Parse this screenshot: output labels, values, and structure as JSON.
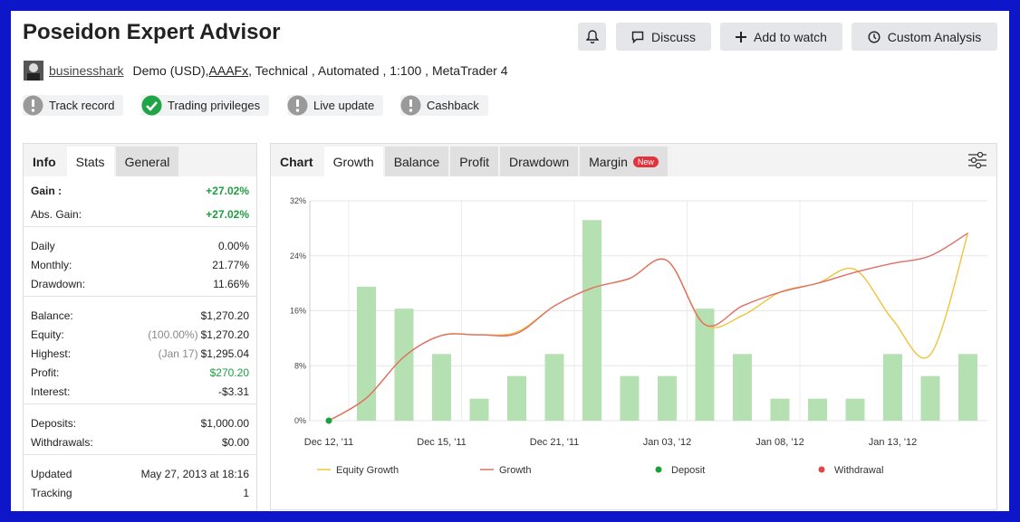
{
  "header": {
    "title": "Poseidon Expert Advisor",
    "buttons": [
      "Discuss",
      "Add to watch",
      "Custom Analysis"
    ],
    "user": "businesshark",
    "account": "Demo (USD),",
    "broker": "AAAFx",
    "details": ", Technical , Automated , 1:100 , MetaTrader 4",
    "badges": [
      "Track record",
      "Trading privileges",
      "Live update",
      "Cashback"
    ]
  },
  "left_tabs": [
    "Info",
    "Stats",
    "General"
  ],
  "stats": [
    [
      {
        "label": "Gain :",
        "value": "+27.02%",
        "color": "#1e9e3e"
      },
      {
        "label": "Abs. Gain:",
        "value": "+27.02%",
        "color": "#1e9e3e"
      }
    ],
    [
      {
        "label": "Daily",
        "value": "0.00%"
      },
      {
        "label": "Monthly:",
        "value": "21.77%"
      },
      {
        "label": "Drawdown:",
        "value": "11.66%"
      }
    ],
    [
      {
        "label": "Balance:",
        "value": "$1,270.20"
      },
      {
        "label": "Equity:",
        "note": "(100.00%)",
        "value": "$1,270.20"
      },
      {
        "label": "Highest:",
        "note": "(Jan 17)",
        "value": "$1,295.04"
      },
      {
        "label": "Profit:",
        "value": "$270.20",
        "color": "#1e9e3e"
      },
      {
        "label": "Interest:",
        "value": "-$3.31"
      }
    ],
    [
      {
        "label": "Deposits:",
        "value": "$1,000.00"
      },
      {
        "label": "Withdrawals:",
        "value": "$0.00"
      }
    ],
    [
      {
        "label": "Updated",
        "value": "May 27, 2013 at 18:16"
      },
      {
        "label": "Tracking",
        "value": "1"
      }
    ]
  ],
  "chart_tabs": [
    "Chart",
    "Growth",
    "Balance",
    "Profit",
    "Drawdown",
    "Margin"
  ],
  "new_badge": "New",
  "chart_data": {
    "type": "line",
    "categories": [
      "Dec 12, '11",
      null,
      null,
      "Dec 15, '11",
      null,
      null,
      "Dec 21, '11",
      null,
      null,
      "Jan 03, '12",
      null,
      null,
      "Jan 08, '12",
      null,
      null,
      "Jan 13, '12",
      null,
      null
    ],
    "ylim": [
      0,
      32
    ],
    "yticks": [
      {
        "value": 0,
        "label": "0%"
      },
      {
        "value": 8,
        "label": "8%"
      },
      {
        "value": 16,
        "label": "16%"
      },
      {
        "value": 24,
        "label": "24%"
      },
      {
        "value": 32,
        "label": "32%"
      }
    ],
    "grid": true,
    "bars": {
      "color": "#b5e0b2",
      "values": [
        null,
        19.5,
        16.3,
        9.7,
        3.2,
        6.5,
        9.7,
        29.2,
        6.5,
        6.5,
        16.3,
        9.7,
        3.2,
        3.2,
        3.2,
        9.7,
        6.5,
        9.7
      ]
    },
    "series": [
      {
        "name": "Equity Growth",
        "color": "#f0c33c",
        "kind": "line",
        "values": [
          0,
          3.3,
          9.3,
          12.4,
          12.5,
          12.9,
          16.7,
          19.3,
          20.7,
          23.3,
          14.0,
          15.3,
          18.7,
          20,
          22,
          14.7,
          9.6,
          27.3
        ]
      },
      {
        "name": "Growth",
        "color": "#e06d66",
        "kind": "line",
        "values": [
          0,
          3.3,
          9.3,
          12.4,
          12.5,
          12.7,
          16.7,
          19.3,
          20.7,
          23.3,
          14.0,
          16.7,
          18.7,
          20,
          21.6,
          22.9,
          24,
          27.3
        ]
      },
      {
        "name": "Deposit",
        "color": "#18a23c",
        "kind": "point",
        "values": [
          0,
          null,
          null,
          null,
          null,
          null,
          null,
          null,
          null,
          null,
          null,
          null,
          null,
          null,
          null,
          null,
          null,
          null
        ]
      },
      {
        "name": "Withdrawal",
        "color": "#e04848",
        "kind": "point",
        "values": [
          null,
          null,
          null,
          null,
          null,
          null,
          null,
          null,
          null,
          null,
          null,
          null,
          null,
          null,
          null,
          null,
          null,
          null
        ]
      }
    ]
  }
}
